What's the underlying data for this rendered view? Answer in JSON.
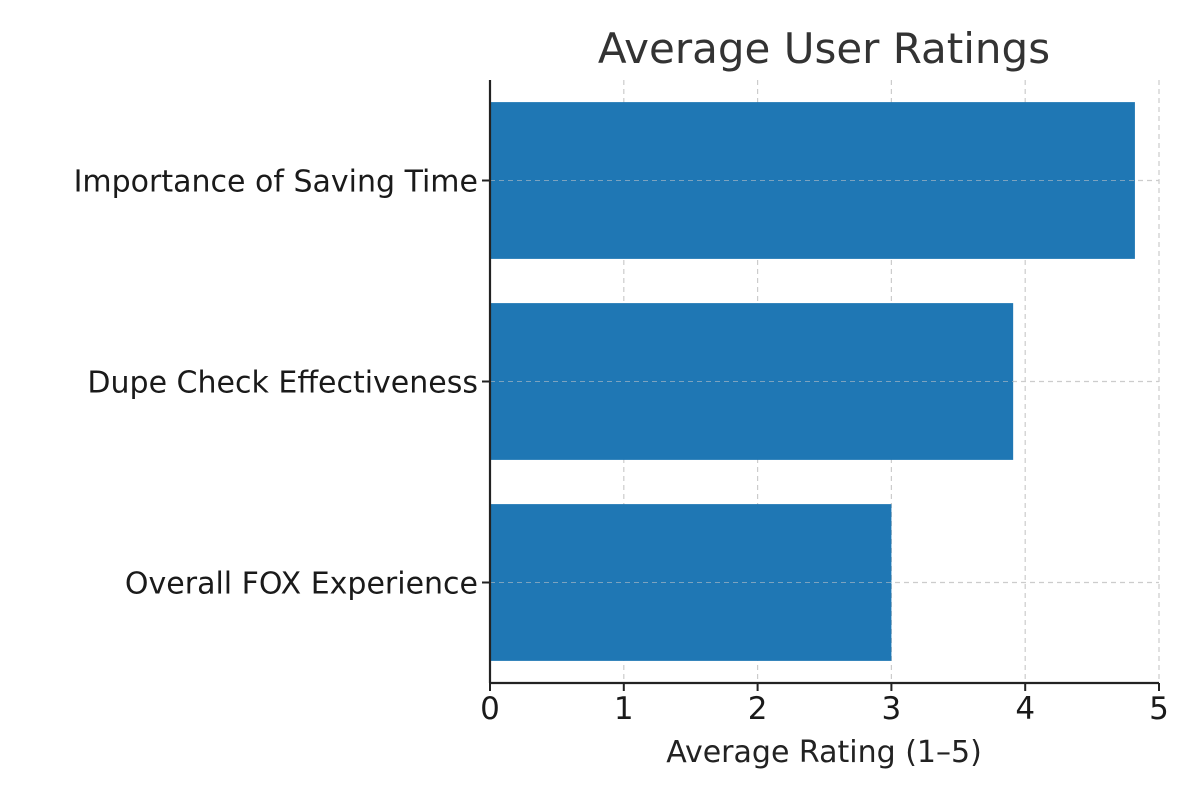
{
  "chart_data": {
    "type": "bar",
    "orientation": "horizontal",
    "title": "Average User Ratings",
    "xlabel": "Average Rating (1–5)",
    "ylabel": "",
    "categories": [
      "Importance of Saving Time",
      "Dupe Check Effectiveness",
      "Overall FOX Experience"
    ],
    "values": [
      4.82,
      3.91,
      3.0
    ],
    "xlim": [
      0,
      5
    ],
    "xticks": [
      0,
      1,
      2,
      3,
      4,
      5
    ],
    "grid": true,
    "legend": "none",
    "bar_color": "#1f77b4"
  }
}
